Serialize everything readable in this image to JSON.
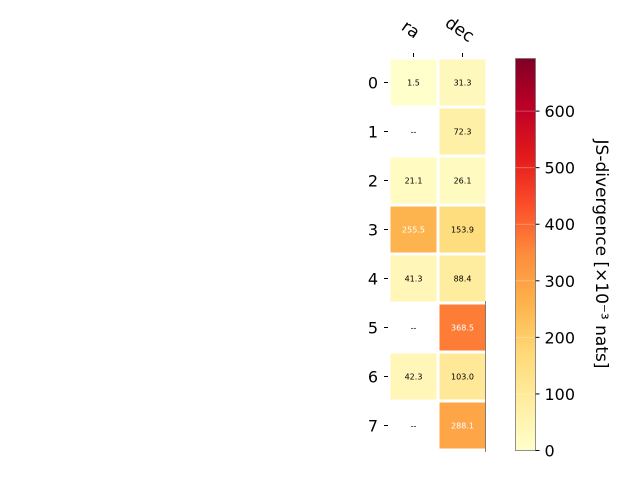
{
  "chart_data": {
    "type": "heatmap",
    "x_categories": [
      "ra",
      "dec"
    ],
    "y_categories": [
      "0",
      "1",
      "2",
      "3",
      "4",
      "5",
      "6",
      "7"
    ],
    "values": [
      [
        1.5,
        31.3
      ],
      [
        null,
        72.3
      ],
      [
        21.1,
        26.1
      ],
      [
        255.5,
        153.9
      ],
      [
        41.3,
        88.4
      ],
      [
        null,
        368.5
      ],
      [
        42.3,
        103.0
      ],
      [
        null,
        288.1
      ]
    ],
    "cell_labels": [
      [
        "1.5",
        "31.3"
      ],
      [
        "--",
        "72.3"
      ],
      [
        "21.1",
        "26.1"
      ],
      [
        "255.5",
        "153.9"
      ],
      [
        "41.3",
        "88.4"
      ],
      [
        "--",
        "368.5"
      ],
      [
        "42.3",
        "103.0"
      ],
      [
        "--",
        "288.1"
      ]
    ],
    "colormap": "YlOrRd",
    "colorbar": {
      "label": "JS-divergence [×10⁻³ nats]",
      "min": 0,
      "max": 693,
      "ticks": [
        0,
        100,
        200,
        300,
        400,
        500,
        600
      ],
      "tick_labels": [
        "0",
        "100",
        "200",
        "300",
        "400",
        "500",
        "600"
      ]
    },
    "grid": false,
    "legend": "none"
  },
  "colors": {
    "cell_border": "#ffffff",
    "text_dark": "#000000",
    "text_light": "#ffffff",
    "axis": "#000000",
    "background": "#ffffff"
  }
}
